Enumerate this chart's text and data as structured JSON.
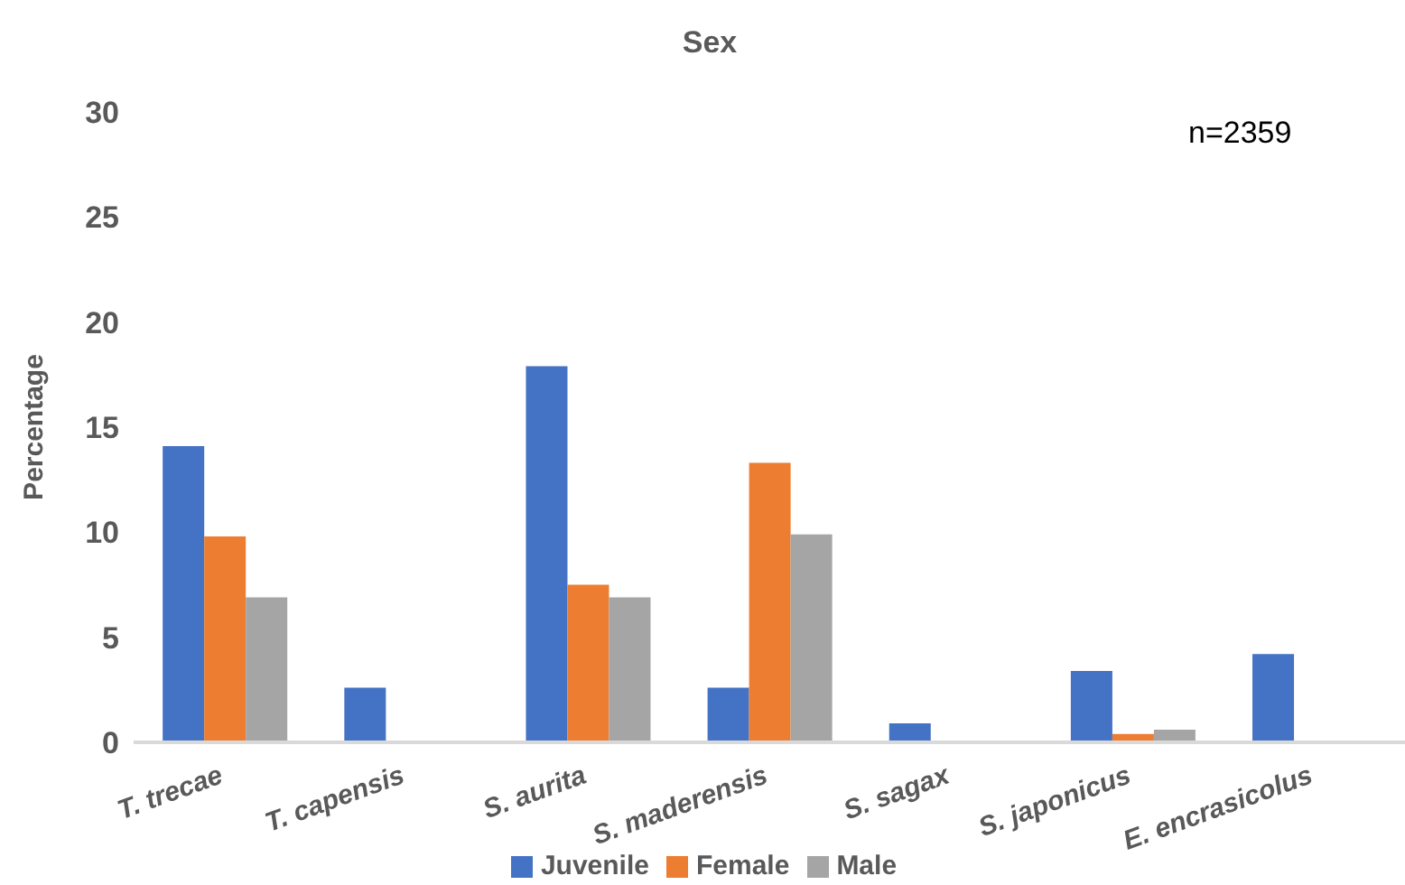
{
  "chart_data": {
    "type": "bar",
    "title": "Sex",
    "ylabel": "Percentage",
    "categories": [
      "T. trecae",
      "T. capensis",
      "S. aurita",
      "S. maderensis",
      "S. sagax",
      "S. japonicus",
      "E. encrasicolus"
    ],
    "series": [
      {
        "name": "Juvenile",
        "color": "#4472c4",
        "values": [
          14.1,
          2.6,
          17.9,
          2.6,
          0.9,
          3.4,
          4.2
        ]
      },
      {
        "name": "Female",
        "color": "#ed7d31",
        "values": [
          9.8,
          null,
          7.5,
          13.3,
          null,
          0.4,
          null
        ]
      },
      {
        "name": "Male",
        "color": "#a5a5a5",
        "values": [
          6.9,
          null,
          6.9,
          9.9,
          null,
          0.6,
          null
        ]
      }
    ],
    "ylim": [
      0,
      30
    ],
    "yticks": [
      0,
      5,
      10,
      15,
      20,
      25,
      30
    ],
    "grid": false,
    "legend": "bottom",
    "annotations": [
      "n=2359"
    ]
  }
}
